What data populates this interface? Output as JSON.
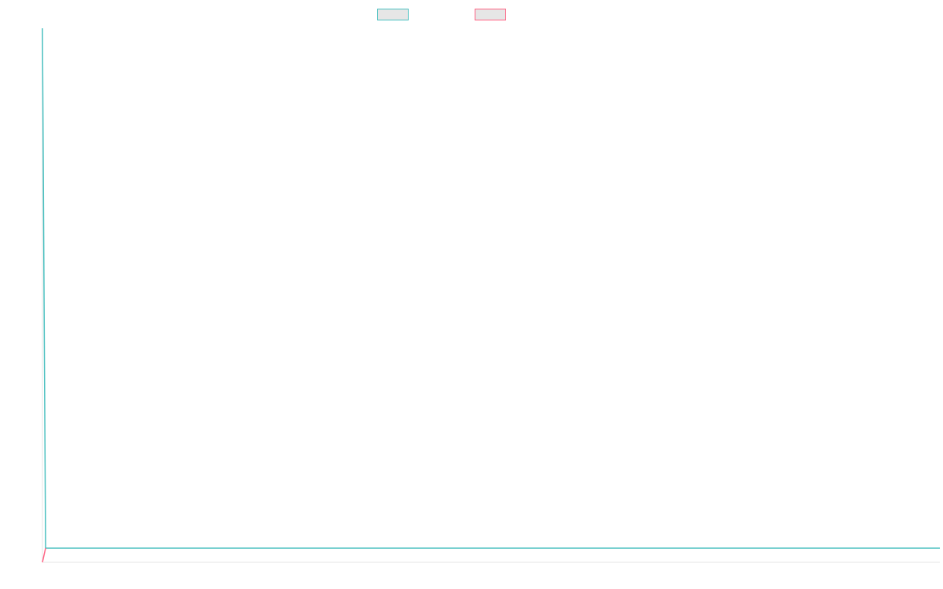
{
  "chart_data": {
    "type": "line",
    "title": "",
    "xlabel": "",
    "ylabel": "",
    "legend_position": "top-center",
    "grid": false,
    "series": [
      {
        "name": "",
        "color": "#4bc0c0",
        "values": []
      },
      {
        "name": "",
        "color": "#ff6384",
        "values": []
      }
    ]
  }
}
